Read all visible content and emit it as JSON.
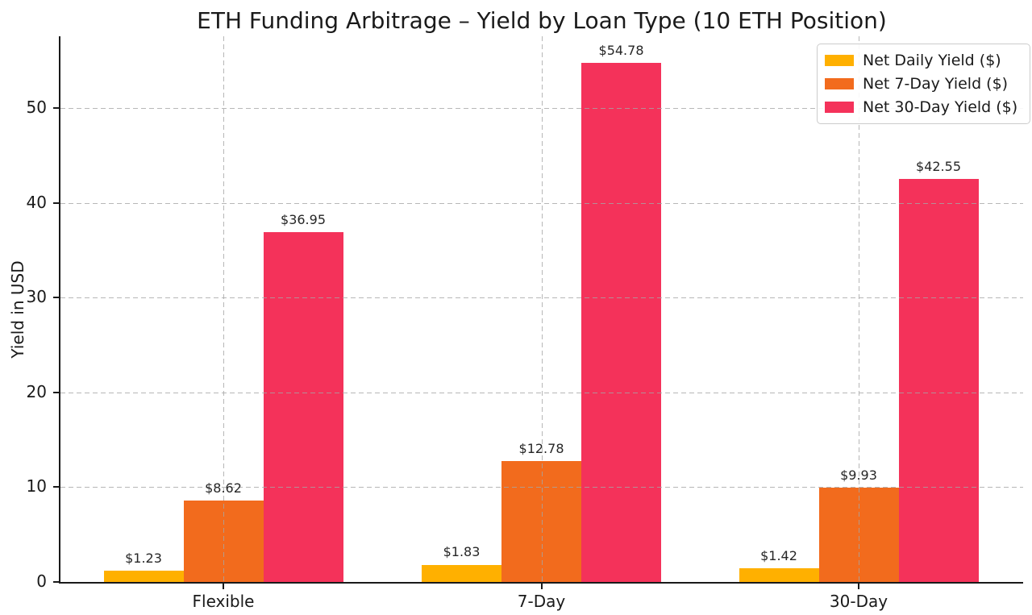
{
  "chart_data": {
    "type": "bar",
    "title": "ETH Funding Arbitrage – Yield by Loan Type (10 ETH Position)",
    "ylabel": "Yield in USD",
    "xlabel": "",
    "categories": [
      "Flexible",
      "7-Day",
      "30-Day"
    ],
    "series": [
      {
        "name": "Net Daily Yield ($)",
        "color": "#FFB000",
        "values": [
          1.23,
          1.83,
          1.42
        ]
      },
      {
        "name": "Net 7-Day Yield ($)",
        "color": "#F26B1D",
        "values": [
          8.62,
          12.78,
          9.93
        ]
      },
      {
        "name": "Net 30-Day Yield ($)",
        "color": "#F4325A",
        "values": [
          36.95,
          54.78,
          42.55
        ]
      }
    ],
    "value_labels": [
      [
        "$1.23",
        "$1.83",
        "$1.42"
      ],
      [
        "$8.62",
        "$12.78",
        "$9.93"
      ],
      [
        "$36.95",
        "$54.78",
        "$42.55"
      ]
    ],
    "ylim": [
      0,
      57.6
    ],
    "yticks": [
      0,
      10,
      20,
      30,
      40,
      50
    ],
    "grid": "dashed gridlines on both axes, drawn above bars",
    "legend_position": "upper right",
    "value_label_prefix": "$"
  }
}
